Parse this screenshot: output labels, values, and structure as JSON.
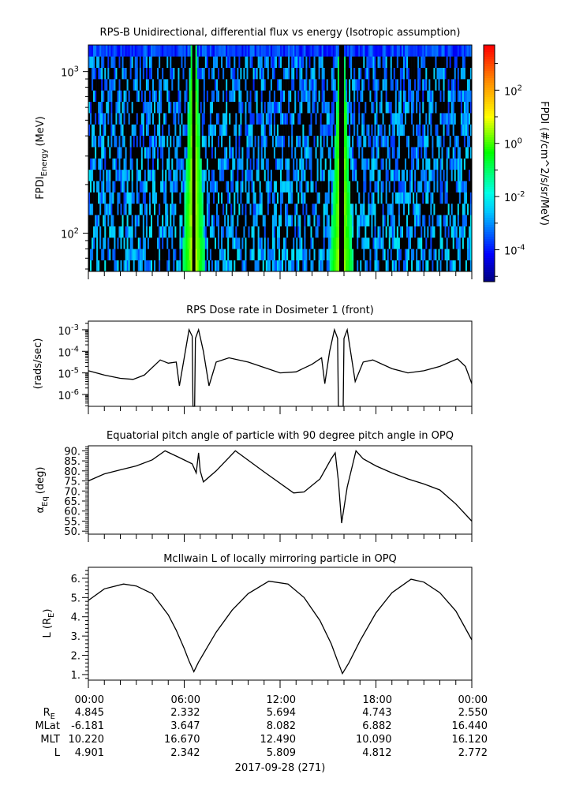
{
  "chart_data": [
    {
      "type": "heatmap",
      "title": "RPS-B  Unidirectional, differential flux vs energy (Isotropic assumption)",
      "ylabel_main": "FPDI",
      "ylabel_sub": "Energy",
      "ylabel_unit": "(MeV)",
      "yscale": "log",
      "ylim": [
        58,
        1460
      ],
      "yticks": [
        {
          "base": "10",
          "exp": "2",
          "value": 100
        },
        {
          "base": "10",
          "exp": "3",
          "value": 1000
        }
      ],
      "xlim_hours": [
        0,
        24
      ],
      "energy_bins": 20,
      "time_bins": 240,
      "belt_crossings_hours": [
        6.6,
        15.85
      ],
      "colorbar": {
        "label": "FPDI (#/cm^2/s/sr/MeV)",
        "zscale": "log",
        "zlim_log10": [
          -5.2,
          3.7
        ],
        "ticks": [
          {
            "base": "10",
            "exp": "2",
            "log": 2
          },
          {
            "base": "10",
            "exp": "0",
            "log": 0
          },
          {
            "base": "10",
            "exp": "-2",
            "log": -2
          },
          {
            "base": "10",
            "exp": "-4",
            "log": -4
          }
        ]
      }
    },
    {
      "type": "line",
      "title": "RPS  Dose rate in Dosimeter 1 (front)",
      "ylabel": "(rads/sec)",
      "yscale": "log",
      "ylim_log10": [
        -6.55,
        -2.6
      ],
      "yticks": [
        {
          "base": "10",
          "exp": "-3",
          "log": -3
        },
        {
          "base": "10",
          "exp": "-4",
          "log": -4
        },
        {
          "base": "10",
          "exp": "-5",
          "log": -5
        },
        {
          "base": "10",
          "exp": "-6",
          "log": -6
        }
      ],
      "x_hours": [
        0,
        1,
        2,
        2.8,
        3.5,
        4.5,
        5.0,
        5.5,
        5.7,
        6.0,
        6.3,
        6.5,
        6.55,
        6.65,
        6.7,
        6.9,
        7.2,
        7.55,
        8.0,
        8.8,
        10,
        11,
        12,
        13,
        14,
        14.6,
        14.8,
        15.1,
        15.4,
        15.6,
        15.65,
        15.95,
        16.0,
        16.2,
        16.7,
        17.2,
        17.8,
        19,
        20,
        21,
        22,
        23.1,
        23.6,
        24
      ],
      "y_log10": [
        -4.9,
        -5.1,
        -5.25,
        -5.3,
        -5.1,
        -4.4,
        -4.55,
        -4.5,
        -5.6,
        -4.3,
        -3.0,
        -3.3,
        -7.0,
        -7.0,
        -3.4,
        -3.0,
        -4.0,
        -5.6,
        -4.5,
        -4.3,
        -4.5,
        -4.75,
        -5.0,
        -4.95,
        -4.6,
        -4.3,
        -5.5,
        -4.0,
        -3.0,
        -3.4,
        -7.0,
        -7.0,
        -3.4,
        -3.0,
        -5.4,
        -4.5,
        -4.4,
        -4.8,
        -5.0,
        -4.9,
        -4.7,
        -4.35,
        -4.7,
        -5.5
      ]
    },
    {
      "type": "line",
      "title": "Equatorial pitch angle of particle with 90 degree pitch angle in OPQ",
      "ylabel_main": "α",
      "ylabel_sub": "Eq",
      "ylabel_unit": "(deg)",
      "ylim": [
        48.5,
        92.5
      ],
      "yticks": [
        "90.",
        "85.",
        "80.",
        "75.",
        "70.",
        "65.",
        "60.",
        "55.",
        "50."
      ],
      "ytick_values": [
        90,
        85,
        80,
        75,
        70,
        65,
        60,
        55,
        50
      ],
      "x_hours": [
        0,
        1,
        2,
        3,
        4,
        4.8,
        5.6,
        6.5,
        6.75,
        6.9,
        7.0,
        7.2,
        8.0,
        9.2,
        11,
        12.85,
        13.5,
        14.5,
        15.2,
        15.45,
        15.65,
        15.85,
        16.2,
        16.75,
        17.2,
        18,
        19,
        20,
        21,
        22,
        23,
        24
      ],
      "y": [
        75,
        78.5,
        80.5,
        82.5,
        85.5,
        90,
        87,
        83.5,
        79,
        89,
        80,
        74.5,
        80,
        90,
        79.5,
        69,
        69.5,
        76,
        86,
        89,
        75,
        54,
        72,
        90,
        86,
        82.5,
        79,
        76,
        73.5,
        70.5,
        63.5,
        55
      ]
    },
    {
      "type": "line",
      "title": "McIlwain L of locally mirroring particle in OPQ",
      "ylabel_main": "L (R",
      "ylabel_sub": "E",
      "ylabel_unit": ")",
      "ylim": [
        0.71,
        6.57
      ],
      "yticks": [
        "6.",
        "5.",
        "4.",
        "3.",
        "2.",
        "1."
      ],
      "ytick_values": [
        6,
        5,
        4,
        3,
        2,
        1
      ],
      "x_hours": [
        0,
        1,
        2.2,
        3,
        4,
        5,
        5.5,
        6,
        6.3,
        6.6,
        6.9,
        7.5,
        8,
        9,
        10,
        11.3,
        12.5,
        13.5,
        14.5,
        15.2,
        15.6,
        15.9,
        16.3,
        17,
        18,
        19,
        20.2,
        21,
        22,
        23,
        24
      ],
      "y": [
        4.85,
        5.45,
        5.7,
        5.6,
        5.2,
        4.1,
        3.3,
        2.35,
        1.7,
        1.15,
        1.65,
        2.5,
        3.2,
        4.35,
        5.2,
        5.85,
        5.7,
        5.0,
        3.8,
        2.6,
        1.7,
        1.05,
        1.6,
        2.75,
        4.2,
        5.25,
        5.95,
        5.8,
        5.25,
        4.3,
        2.8
      ]
    }
  ],
  "x_axis": {
    "tick_labels": [
      "00:00",
      "06:00",
      "12:00",
      "18:00",
      "00:00"
    ],
    "date_label": "2017-09-28 (271)",
    "ephemeris": [
      {
        "label_main": "R",
        "label_sub": "E",
        "values": [
          "4.845",
          "2.332",
          "5.694",
          "4.743",
          "2.550"
        ]
      },
      {
        "label_main": "MLat",
        "label_sub": "",
        "values": [
          "-6.181",
          "3.647",
          "8.082",
          "6.882",
          "16.440"
        ]
      },
      {
        "label_main": "MLT",
        "label_sub": "",
        "values": [
          "10.220",
          "16.670",
          "12.490",
          "10.090",
          "16.120"
        ]
      },
      {
        "label_main": "L",
        "label_sub": "",
        "values": [
          "4.901",
          "2.342",
          "5.809",
          "4.812",
          "2.772"
        ]
      }
    ]
  }
}
